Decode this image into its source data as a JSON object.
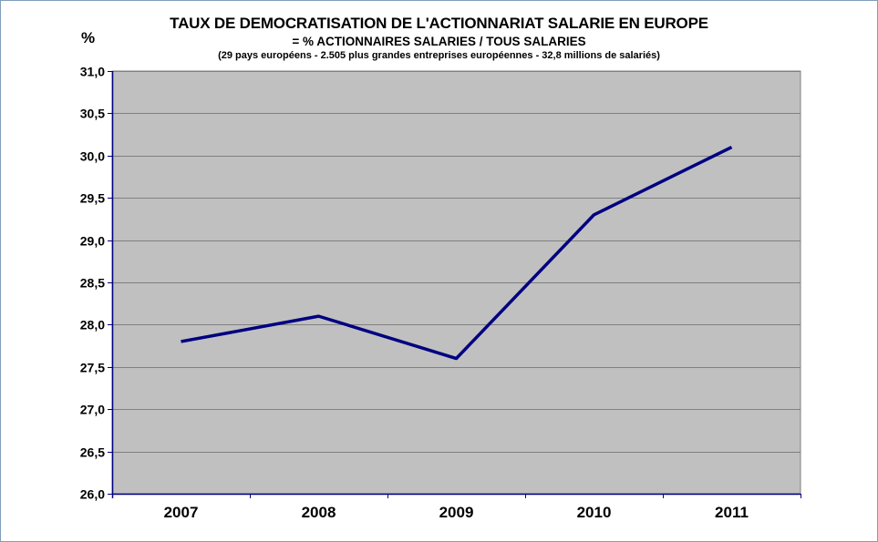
{
  "chart_data": {
    "type": "line",
    "title": "TAUX DE DEMOCRATISATION  DE L'ACTIONNARIAT SALARIE EN  EUROPE",
    "subtitle": "=  %  ACTIONNAIRES SALARIES /  TOUS SALARIES",
    "note": "(29 pays européens  - 2.505 plus grandes entreprises  européennes  - 32,8 millions de salariés)",
    "ylabel": "%",
    "xlabel": "",
    "categories": [
      "2007",
      "2008",
      "2009",
      "2010",
      "2011"
    ],
    "values": [
      27.8,
      28.1,
      27.6,
      29.3,
      30.1
    ],
    "ylim": [
      26.0,
      31.0
    ],
    "yticks": [
      26.0,
      26.5,
      27.0,
      27.5,
      28.0,
      28.5,
      29.0,
      29.5,
      30.0,
      30.5,
      31.0
    ],
    "ytick_labels": [
      "26,0",
      "26,5",
      "27,0",
      "27,5",
      "28,0",
      "28,5",
      "29,0",
      "29,5",
      "30,0",
      "30,5",
      "31,0"
    ],
    "grid": true,
    "colors": {
      "plot_background": "#c0c0c0",
      "line": "#000080",
      "gridline": "#808080",
      "axis": "#000080"
    }
  }
}
